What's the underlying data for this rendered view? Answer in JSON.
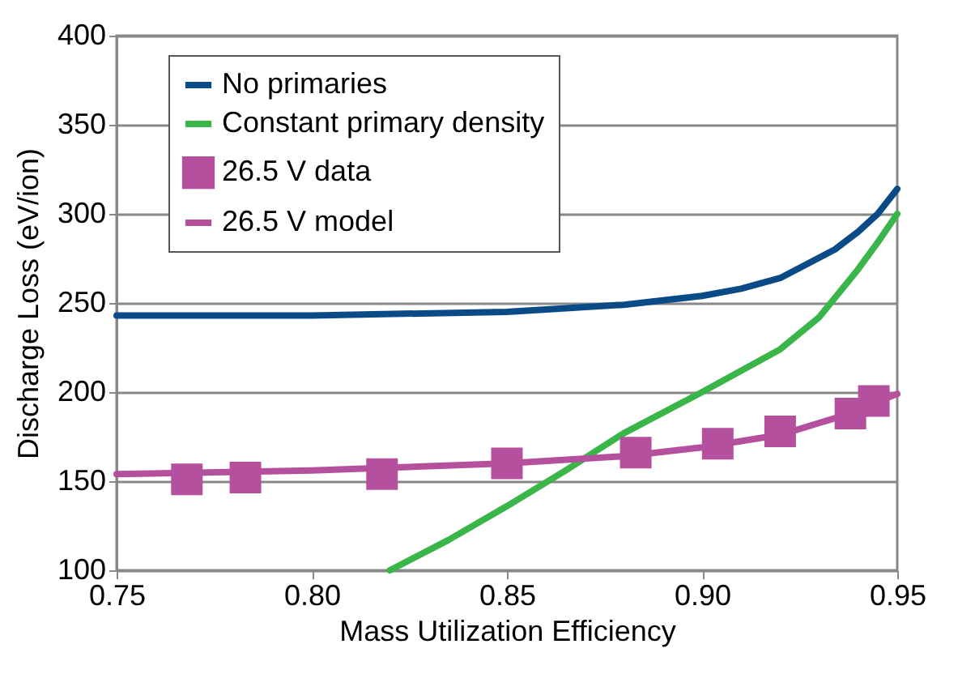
{
  "chart_data": {
    "type": "line",
    "xlabel": "Mass Utilization Efficiency",
    "ylabel": "Discharge Loss (eV/ion)",
    "xlim": [
      0.75,
      0.95
    ],
    "xticks": [
      {
        "value": 0.75,
        "label": "0.75"
      },
      {
        "value": 0.8,
        "label": "0.80"
      },
      {
        "value": 0.85,
        "label": "0.85"
      },
      {
        "value": 0.9,
        "label": "0.90"
      },
      {
        "value": 0.95,
        "label": "0.95"
      }
    ],
    "ylim": [
      100,
      400
    ],
    "yticks": [
      100,
      150,
      200,
      250,
      300,
      350,
      400
    ],
    "grid": "y",
    "legend": "top left",
    "series": [
      {
        "name": "No primaries",
        "color": "#0a4a87",
        "marker": "none",
        "x": [
          0.75,
          0.8,
          0.85,
          0.88,
          0.9,
          0.91,
          0.92,
          0.934,
          0.94,
          0.945,
          0.95
        ],
        "values": [
          243,
          243,
          245,
          249,
          254,
          258,
          264,
          280,
          290,
          300,
          314
        ]
      },
      {
        "name": "Constant primary density",
        "color": "#3ab54a",
        "marker": "none",
        "x": [
          0.82,
          0.835,
          0.85,
          0.865,
          0.88,
          0.9,
          0.92,
          0.93,
          0.94,
          0.945,
          0.95
        ],
        "values": [
          100,
          117,
          136,
          156,
          177,
          200,
          224,
          242,
          269,
          284,
          300
        ]
      },
      {
        "name": "26.5 V data",
        "color": "#b5509e",
        "type": "scatter",
        "marker": "square",
        "x": [
          0.768,
          0.783,
          0.818,
          0.85,
          0.883,
          0.904,
          0.92,
          0.938,
          0.944
        ],
        "values": [
          151,
          152,
          154,
          160,
          166,
          171,
          178,
          188,
          195
        ]
      },
      {
        "name": "26.5 V model",
        "color": "#b5509e",
        "marker": "none",
        "x": [
          0.75,
          0.8,
          0.85,
          0.88,
          0.9,
          0.92,
          0.935,
          0.944,
          0.95
        ],
        "values": [
          154,
          156,
          160,
          164,
          169,
          176,
          186,
          194,
          199
        ]
      }
    ]
  }
}
